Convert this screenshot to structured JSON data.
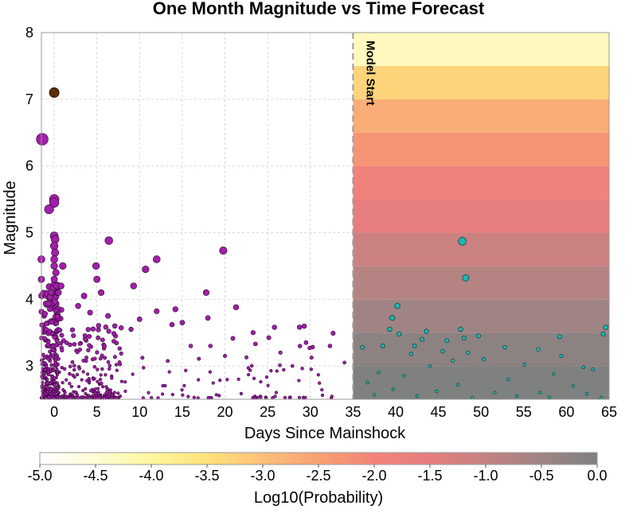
{
  "chart_data": {
    "type": "scatter",
    "title": "One Month Magnitude vs Time Forecast",
    "xlabel": "Days Since Mainshock",
    "ylabel": "Magnitude",
    "xlim": [
      -1.5,
      65
    ],
    "ylim": [
      2.5,
      8
    ],
    "x_ticks": [
      "0",
      "5",
      "10",
      "15",
      "20",
      "25",
      "30",
      "35",
      "40",
      "45",
      "50",
      "55",
      "60",
      "65"
    ],
    "y_ticks": [
      "3",
      "4",
      "5",
      "6",
      "7",
      "8"
    ],
    "grid": true,
    "model_start": {
      "x": 35,
      "label": "Model Start"
    },
    "mainshock": {
      "x": 0,
      "magnitude": 7.1,
      "color": "#5a2d0c"
    },
    "colors": {
      "historical": "#a020a8",
      "forecast_observed": "#1fb5b0",
      "mainshock": "#5a2d0c"
    },
    "forecast_heatmap": {
      "magnitude_bins": [
        2.5,
        3.0,
        3.5,
        4.0,
        4.5,
        5.0,
        5.5,
        6.0,
        6.5,
        7.0,
        7.5,
        8.0
      ],
      "log10_probability": [
        0.0,
        -0.2,
        -0.5,
        -0.8,
        -1.1,
        -1.5,
        -1.9,
        -2.3,
        -2.7,
        -3.3,
        -4.3
      ]
    },
    "colorbar": {
      "label": "Log10(Probability)",
      "range": [
        -5.0,
        0.0
      ],
      "ticks": [
        "-5.0",
        "-4.5",
        "-4.0",
        "-3.5",
        "-3.0",
        "-2.5",
        "-2.0",
        "-1.5",
        "-1.0",
        "-0.5",
        "0.0"
      ],
      "colors": [
        "#ffffff",
        "#fffbd4",
        "#fff7a0",
        "#ffe27a",
        "#fdbf7a",
        "#f8a173",
        "#f3837a",
        "#e67e7e",
        "#c58282",
        "#a08484",
        "#7f8080"
      ]
    },
    "series": [
      {
        "name": "",
        "points": [
          {
            "x": -1.4,
            "y": 6.4
          },
          {
            "x": -1.5,
            "y": 4.6
          },
          {
            "x": -1.5,
            "y": 4.3
          },
          {
            "x": 0.0,
            "y": 5.5
          },
          {
            "x": 0.0,
            "y": 5.45
          },
          {
            "x": -0.6,
            "y": 5.35
          },
          {
            "x": 0.0,
            "y": 4.95
          },
          {
            "x": 0.1,
            "y": 4.9
          },
          {
            "x": 0.0,
            "y": 4.8
          },
          {
            "x": 0.1,
            "y": 4.7
          },
          {
            "x": 0.0,
            "y": 4.6
          },
          {
            "x": 0.0,
            "y": 4.5
          },
          {
            "x": 0.2,
            "y": 4.4
          },
          {
            "x": 0.0,
            "y": 4.3
          },
          {
            "x": 0.3,
            "y": 4.2
          },
          {
            "x": 1.0,
            "y": 4.5
          },
          {
            "x": 0.8,
            "y": 4.2
          },
          {
            "x": 0.5,
            "y": 4.1
          },
          {
            "x": 6.4,
            "y": 4.88
          },
          {
            "x": 19.8,
            "y": 4.73
          },
          {
            "x": 12.0,
            "y": 4.6
          },
          {
            "x": 10.7,
            "y": 4.45
          },
          {
            "x": 4.9,
            "y": 4.5
          },
          {
            "x": 5.0,
            "y": 4.3
          },
          {
            "x": 9.3,
            "y": 4.2
          },
          {
            "x": 5.5,
            "y": 4.1
          },
          {
            "x": 3.5,
            "y": 4.05
          },
          {
            "x": 17.8,
            "y": 4.1
          },
          {
            "x": 21.3,
            "y": 3.88
          },
          {
            "x": 2.8,
            "y": 3.9
          },
          {
            "x": 4.2,
            "y": 3.8
          },
          {
            "x": 14.2,
            "y": 3.85
          },
          {
            "x": 12.0,
            "y": 3.82
          },
          {
            "x": 6.3,
            "y": 3.75
          },
          {
            "x": 18.0,
            "y": 3.72
          },
          {
            "x": 10.0,
            "y": 3.7
          },
          {
            "x": 7.1,
            "y": 3.6
          },
          {
            "x": 13.8,
            "y": 3.62
          },
          {
            "x": 15.0,
            "y": 3.65
          },
          {
            "x": 23.3,
            "y": 3.5
          },
          {
            "x": 25.8,
            "y": 3.58
          },
          {
            "x": 9.0,
            "y": 3.55
          },
          {
            "x": 16.0,
            "y": 3.3
          },
          {
            "x": 18.3,
            "y": 3.3
          },
          {
            "x": 20.0,
            "y": 3.15
          },
          {
            "x": 26.5,
            "y": 3.2
          },
          {
            "x": 29.5,
            "y": 3.35
          },
          {
            "x": 32.3,
            "y": 3.3
          },
          {
            "x": 34.0,
            "y": 3.05
          },
          {
            "x": 27.9,
            "y": 3.0
          },
          {
            "x": 30.1,
            "y": 2.95
          }
        ]
      },
      {
        "name": "",
        "points": [
          {
            "x": 47.8,
            "y": 4.87
          },
          {
            "x": 48.2,
            "y": 4.32
          },
          {
            "x": 40.2,
            "y": 3.9
          },
          {
            "x": 39.6,
            "y": 3.72
          },
          {
            "x": 39.3,
            "y": 3.55
          },
          {
            "x": 40.4,
            "y": 3.48
          },
          {
            "x": 64.6,
            "y": 3.58
          },
          {
            "x": 64.3,
            "y": 3.48
          },
          {
            "x": 43.6,
            "y": 3.52
          },
          {
            "x": 47.6,
            "y": 3.55
          },
          {
            "x": 48.0,
            "y": 3.42
          },
          {
            "x": 49.7,
            "y": 3.45
          },
          {
            "x": 46.0,
            "y": 3.38
          },
          {
            "x": 59.2,
            "y": 3.44
          },
          {
            "x": 43.1,
            "y": 3.4
          },
          {
            "x": 36.1,
            "y": 3.28
          },
          {
            "x": 38.5,
            "y": 3.3
          },
          {
            "x": 42.2,
            "y": 3.3
          },
          {
            "x": 45.5,
            "y": 3.22
          },
          {
            "x": 52.8,
            "y": 3.28
          },
          {
            "x": 48.5,
            "y": 3.2
          },
          {
            "x": 56.7,
            "y": 3.25
          },
          {
            "x": 41.8,
            "y": 3.18
          },
          {
            "x": 59.4,
            "y": 3.15
          },
          {
            "x": 46.7,
            "y": 3.08
          },
          {
            "x": 50.3,
            "y": 3.1
          },
          {
            "x": 55.1,
            "y": 3.02
          },
          {
            "x": 44.0,
            "y": 3.0
          },
          {
            "x": 62.0,
            "y": 2.98
          },
          {
            "x": 38.0,
            "y": 2.9
          },
          {
            "x": 41.0,
            "y": 2.85
          },
          {
            "x": 58.5,
            "y": 2.88
          },
          {
            "x": 63.1,
            "y": 2.95
          },
          {
            "x": 53.2,
            "y": 2.8
          },
          {
            "x": 36.7,
            "y": 2.75
          },
          {
            "x": 47.3,
            "y": 2.72
          },
          {
            "x": 60.8,
            "y": 2.7
          },
          {
            "x": 39.7,
            "y": 2.65
          },
          {
            "x": 44.8,
            "y": 2.62
          },
          {
            "x": 51.6,
            "y": 2.6
          },
          {
            "x": 56.9,
            "y": 2.6
          },
          {
            "x": 62.4,
            "y": 2.58
          },
          {
            "x": 42.5,
            "y": 2.55
          },
          {
            "x": 49.0,
            "y": 2.52
          },
          {
            "x": 54.2,
            "y": 2.55
          },
          {
            "x": 58.0,
            "y": 2.53
          },
          {
            "x": 37.5,
            "y": 2.57
          },
          {
            "x": 64.1,
            "y": 2.52
          }
        ]
      }
    ]
  }
}
